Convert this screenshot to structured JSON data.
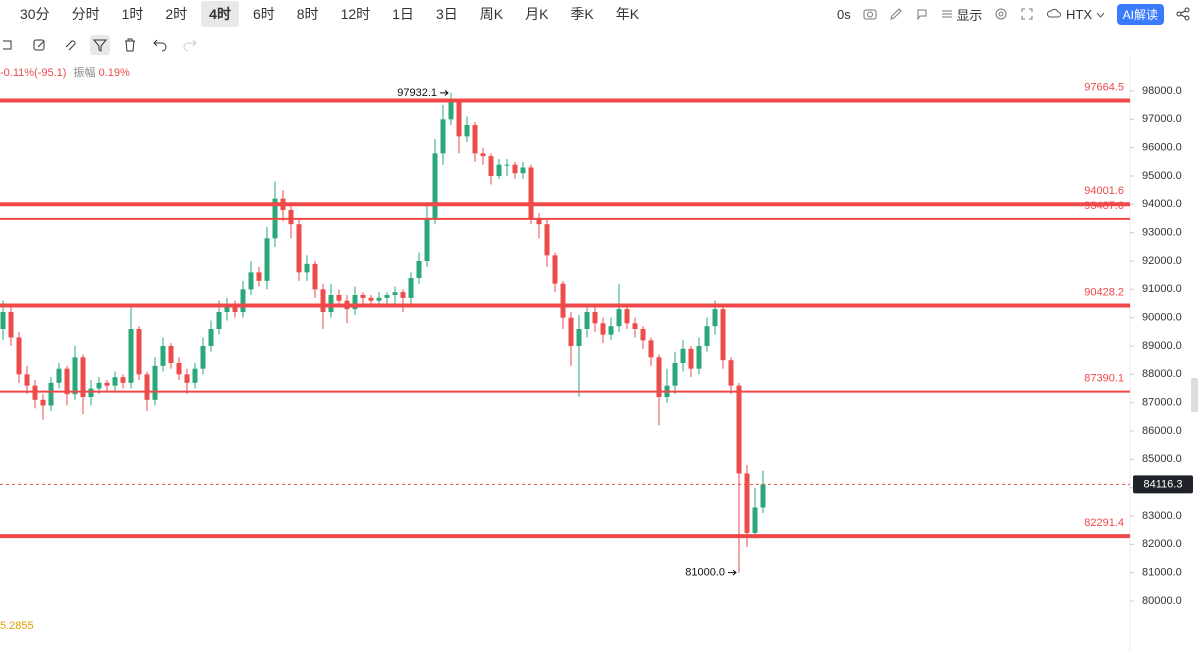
{
  "toolbar": {
    "intervals": [
      "30分",
      "分时",
      "1时",
      "2时",
      "4时",
      "6时",
      "8时",
      "12时",
      "1日",
      "3日",
      "周K",
      "月K",
      "季K",
      "年K"
    ],
    "selected": "4时",
    "timer": "0s",
    "display": "显示",
    "exchange": "HTX",
    "ai": "AI解读"
  },
  "stats": {
    "change": "-0.11%(-95.1)",
    "amplitude_label": "振幅",
    "amplitude": "0.19%"
  },
  "indicator_value": "5.2855",
  "chart_data": {
    "type": "candlestick",
    "up_color": "#2aa87a",
    "down_color": "#ee4b4b",
    "level_color": "#f04848",
    "ylim": [
      78235,
      99165
    ],
    "yticks": [
      {
        "value": 80000,
        "label": "80000.0"
      },
      {
        "value": 81000,
        "label": "81000.0"
      },
      {
        "value": 82000,
        "label": "82000.0"
      },
      {
        "value": 83000,
        "label": "83000.0"
      },
      {
        "value": 84000,
        "label": "84000.0"
      },
      {
        "value": 85000,
        "label": "85000.0"
      },
      {
        "value": 86000,
        "label": "86000.0"
      },
      {
        "value": 87000,
        "label": "87000.0"
      },
      {
        "value": 88000,
        "label": "88000.0"
      },
      {
        "value": 89000,
        "label": "89000.0"
      },
      {
        "value": 90000,
        "label": "90000.0"
      },
      {
        "value": 91000,
        "label": "91000.0"
      },
      {
        "value": 92000,
        "label": "92000.0"
      },
      {
        "value": 93000,
        "label": "93000.0"
      },
      {
        "value": 94000,
        "label": "94000.0"
      },
      {
        "value": 95000,
        "label": "95000.0"
      },
      {
        "value": 96000,
        "label": "96000.0"
      },
      {
        "value": 97000,
        "label": "97000.0"
      },
      {
        "value": 98000,
        "label": "98000.0"
      }
    ],
    "open": [
      89600,
      90200,
      89300,
      88000,
      87600,
      87100,
      86900,
      87700,
      88200,
      87300,
      88600,
      87200,
      87500,
      87700,
      87600,
      87900,
      87700,
      89600,
      88000,
      87100,
      88300,
      89000,
      88400,
      88000,
      87700,
      88200,
      89000,
      89600,
      90200,
      90400,
      90200,
      91000,
      91600,
      91300,
      92800,
      94200,
      93800,
      93300,
      91600,
      91900,
      91000,
      90200,
      90800,
      90600,
      90300,
      90800,
      90700,
      90600,
      90700,
      90800,
      90900,
      90700,
      91400,
      92000,
      93500,
      95800,
      97000,
      97600,
      96400,
      96800,
      95800,
      95700,
      95000,
      95400,
      95400,
      95100,
      95300,
      93500,
      93300,
      92200,
      91200,
      90000,
      89000,
      89600,
      90200,
      89800,
      89400,
      89700,
      90300,
      89800,
      89600,
      89200,
      88600,
      87200,
      87600,
      88400,
      88900,
      88200,
      89000,
      89700,
      90300,
      88500,
      87600,
      84500,
      82400,
      83300
    ],
    "high": [
      90600,
      90400,
      89500,
      88300,
      87800,
      87300,
      87900,
      88400,
      88300,
      89000,
      88700,
      87800,
      87900,
      87800,
      88100,
      88000,
      90400,
      89700,
      88100,
      88600,
      89300,
      89100,
      88600,
      88200,
      88400,
      89300,
      89900,
      90600,
      90700,
      90600,
      91300,
      92000,
      91800,
      93200,
      94800,
      94500,
      94000,
      93500,
      92200,
      92000,
      91200,
      91200,
      91000,
      90800,
      91100,
      90900,
      90800,
      90900,
      90900,
      91100,
      91000,
      91600,
      92300,
      94000,
      96300,
      97500,
      97932.1,
      97700,
      97100,
      96900,
      96000,
      95800,
      95600,
      95600,
      95500,
      95500,
      95400,
      93700,
      93500,
      92300,
      91300,
      90200,
      90100,
      90500,
      90400,
      90000,
      90000,
      91200,
      90400,
      90000,
      89700,
      89300,
      88700,
      88200,
      88800,
      89200,
      89000,
      89300,
      90000,
      90600,
      90400,
      88600,
      87700,
      84800,
      84000,
      84600
    ],
    "low": [
      89200,
      89000,
      87700,
      87300,
      86800,
      86400,
      86700,
      87500,
      86900,
      87100,
      86600,
      86900,
      87300,
      87400,
      87400,
      87500,
      87500,
      87800,
      86700,
      86900,
      88100,
      88200,
      87800,
      87300,
      87500,
      88000,
      88800,
      89400,
      89900,
      90000,
      90000,
      90800,
      91100,
      91000,
      92500,
      93400,
      92800,
      91300,
      91300,
      90700,
      89600,
      90000,
      90400,
      89800,
      90100,
      90500,
      90400,
      90400,
      90500,
      90500,
      90200,
      90500,
      91200,
      91800,
      93300,
      95400,
      96800,
      95800,
      96200,
      95500,
      95400,
      94700,
      94900,
      95000,
      94900,
      94900,
      93300,
      92800,
      91800,
      90900,
      89600,
      88300,
      87200,
      89300,
      89500,
      89100,
      89200,
      89500,
      89600,
      89300,
      88900,
      88300,
      86200,
      87000,
      87300,
      88100,
      87900,
      88000,
      88800,
      89400,
      88200,
      87300,
      81000,
      81900,
      82200,
      83100
    ],
    "close": [
      90200,
      89300,
      88000,
      87600,
      87100,
      86900,
      87700,
      88200,
      87300,
      88600,
      87200,
      87500,
      87700,
      87600,
      87900,
      87700,
      89600,
      88000,
      87100,
      88300,
      89000,
      88400,
      88000,
      87700,
      88200,
      89000,
      89600,
      90200,
      90400,
      90200,
      91000,
      91600,
      91300,
      92800,
      94200,
      93800,
      93300,
      91600,
      91900,
      91000,
      90200,
      90800,
      90600,
      90300,
      90800,
      90700,
      90600,
      90700,
      90800,
      90900,
      90700,
      91400,
      92000,
      93500,
      95800,
      97000,
      97600,
      96400,
      96800,
      95800,
      95700,
      95000,
      95400,
      95400,
      95100,
      95300,
      93500,
      93300,
      92200,
      91200,
      90000,
      89000,
      89600,
      90200,
      89800,
      89400,
      89700,
      90300,
      89800,
      89600,
      89200,
      88600,
      87200,
      87600,
      88400,
      88900,
      88200,
      89000,
      89700,
      90300,
      88500,
      87600,
      84500,
      82400,
      83300,
      84116.3
    ],
    "levels": [
      {
        "value": 97664.5,
        "width": 4
      },
      {
        "value": 94001.6,
        "width": 4
      },
      {
        "value": 93487,
        "label": "93487.0",
        "width": 2
      },
      {
        "value": 90428.2,
        "width": 4
      },
      {
        "value": 87390.1,
        "width": 2
      },
      {
        "value": 82291.4,
        "width": 4
      }
    ],
    "high_marker": {
      "value": 97932.1
    },
    "low_marker": {
      "value": 81000,
      "label": "81000.0"
    }
  }
}
